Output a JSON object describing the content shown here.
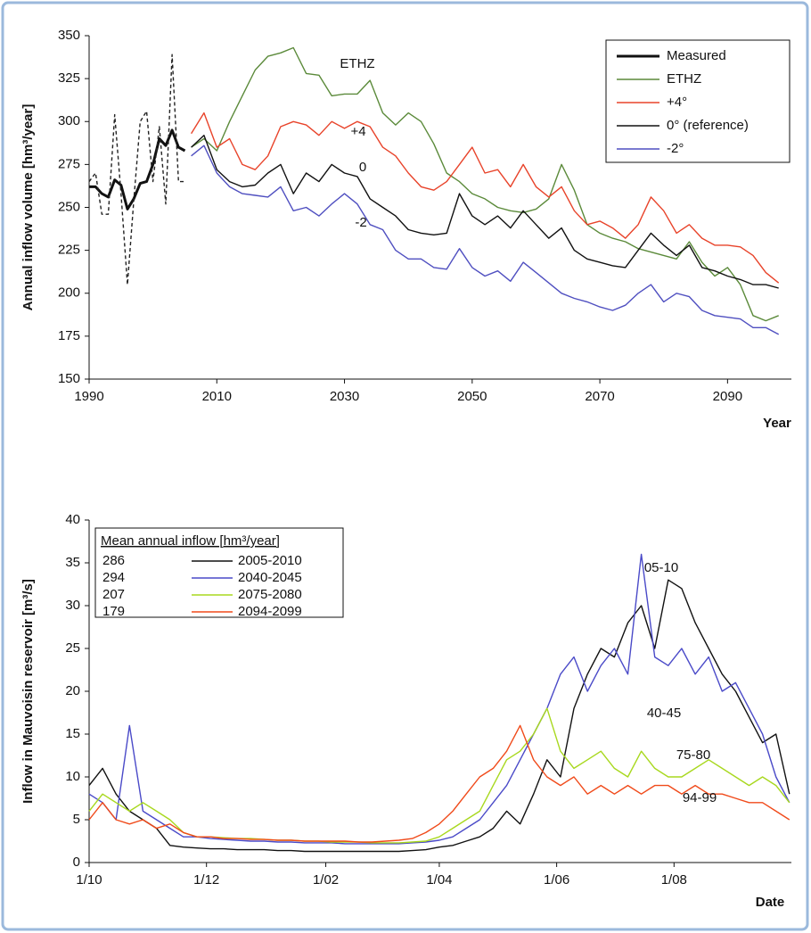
{
  "chart_data": [
    {
      "type": "line",
      "x_label": "Year",
      "y_label": "Annual inflow volume [hm³/year]",
      "xlim": [
        1990,
        2100
      ],
      "xticks": [
        1990,
        2010,
        2030,
        2050,
        2070,
        2090
      ],
      "ylim": [
        150,
        350
      ],
      "yticks": [
        150,
        175,
        200,
        225,
        250,
        275,
        300,
        325,
        350
      ],
      "legend": "top-right",
      "x": [
        2006,
        2008,
        2010,
        2012,
        2014,
        2016,
        2018,
        2020,
        2022,
        2024,
        2026,
        2028,
        2030,
        2032,
        2034,
        2036,
        2038,
        2040,
        2042,
        2044,
        2046,
        2048,
        2050,
        2052,
        2054,
        2056,
        2058,
        2060,
        2062,
        2064,
        2066,
        2068,
        2070,
        2072,
        2074,
        2076,
        2078,
        2080,
        2082,
        2084,
        2086,
        2088,
        2090,
        2092,
        2094,
        2096,
        2098
      ],
      "series": [
        {
          "name": "Measured",
          "color": "#111111",
          "line_width": 3,
          "x": [
            1990,
            1991,
            1992,
            1993,
            1994,
            1995,
            1996,
            1997,
            1998,
            1999,
            2000,
            2001,
            2002,
            2003,
            2004,
            2005
          ],
          "values": [
            262,
            262,
            258,
            256,
            266,
            263,
            249,
            255,
            264,
            265,
            275,
            290,
            286,
            295,
            285,
            283
          ]
        },
        {
          "color": "#222222",
          "dashed": true,
          "x": [
            1990,
            1991,
            1992,
            1993,
            1994,
            1995,
            1996,
            1997,
            1998,
            1999,
            2000,
            2001,
            2002,
            2003,
            2004,
            2005
          ],
          "values": [
            265,
            270,
            246,
            246,
            304,
            258,
            205,
            254,
            300,
            306,
            265,
            297,
            252,
            339,
            265,
            265
          ]
        },
        {
          "name": "ETHZ",
          "color": "#5b8a3a",
          "values": [
            285,
            290,
            283,
            300,
            315,
            330,
            338,
            340,
            343,
            328,
            327,
            315,
            316,
            316,
            324,
            305,
            298,
            305,
            300,
            287,
            270,
            265,
            258,
            255,
            250,
            248,
            247,
            249,
            255,
            275,
            260,
            240,
            235,
            232,
            230,
            226,
            224,
            222,
            220,
            230,
            218,
            210,
            215,
            205,
            187,
            184,
            187
          ]
        },
        {
          "name": "+4°",
          "color": "#e8432a",
          "values": [
            293,
            305,
            285,
            290,
            275,
            272,
            280,
            297,
            300,
            298,
            292,
            300,
            296,
            300,
            297,
            285,
            280,
            270,
            262,
            260,
            265,
            275,
            285,
            270,
            272,
            262,
            275,
            262,
            256,
            262,
            248,
            240,
            242,
            238,
            232,
            240,
            256,
            248,
            235,
            240,
            232,
            228,
            228,
            227,
            222,
            212,
            206
          ]
        },
        {
          "name": "0° (reference)",
          "color": "#111111",
          "values": [
            285,
            292,
            272,
            265,
            262,
            263,
            270,
            275,
            258,
            270,
            265,
            275,
            270,
            268,
            255,
            250,
            245,
            237,
            235,
            234,
            235,
            258,
            245,
            240,
            245,
            238,
            248,
            240,
            232,
            238,
            225,
            220,
            218,
            216,
            215,
            225,
            235,
            228,
            222,
            228,
            215,
            213,
            210,
            208,
            205,
            205,
            203
          ]
        },
        {
          "name": "-2°",
          "color": "#4f4fc0",
          "values": [
            280,
            286,
            270,
            262,
            258,
            257,
            256,
            262,
            248,
            250,
            245,
            252,
            258,
            252,
            240,
            237,
            225,
            220,
            220,
            215,
            214,
            226,
            215,
            210,
            213,
            207,
            218,
            212,
            206,
            200,
            197,
            195,
            192,
            190,
            193,
            200,
            205,
            195,
            200,
            198,
            190,
            187,
            186,
            185,
            180,
            180,
            176
          ]
        }
      ],
      "annotations": [
        "ETHZ",
        "+4",
        "0",
        "-2"
      ]
    },
    {
      "type": "line",
      "x_label": "Date",
      "y_label": "Inflow in Mauvoisin reservoir [m³/s]",
      "xlim": [
        0,
        365
      ],
      "xticks": [
        {
          "value": 0,
          "label": "1/10"
        },
        {
          "value": 61,
          "label": "1/12"
        },
        {
          "value": 123,
          "label": "1/02"
        },
        {
          "value": 182,
          "label": "1/04"
        },
        {
          "value": 243,
          "label": "1/06"
        },
        {
          "value": 304,
          "label": "1/08"
        }
      ],
      "ylim": [
        0,
        40
      ],
      "yticks": [
        0,
        5,
        10,
        15,
        20,
        25,
        30,
        35,
        40
      ],
      "legend": "top-left",
      "legend_title": "Mean annual inflow [hm³/year]",
      "mean_annual_inflow": [
        286,
        294,
        207,
        179
      ],
      "x": [
        0,
        7,
        14,
        21,
        28,
        35,
        42,
        49,
        56,
        63,
        70,
        77,
        84,
        91,
        98,
        105,
        112,
        119,
        126,
        133,
        140,
        147,
        154,
        161,
        168,
        175,
        182,
        189,
        196,
        203,
        210,
        217,
        224,
        231,
        238,
        245,
        252,
        259,
        266,
        273,
        280,
        287,
        294,
        301,
        308,
        315,
        322,
        329,
        336,
        343,
        350,
        357,
        364
      ],
      "series": [
        {
          "name": "2005-2010",
          "color": "#111111",
          "values": [
            9,
            11,
            8,
            6,
            5,
            4,
            2,
            1.8,
            1.7,
            1.6,
            1.6,
            1.5,
            1.5,
            1.5,
            1.4,
            1.4,
            1.3,
            1.3,
            1.3,
            1.3,
            1.3,
            1.3,
            1.3,
            1.3,
            1.4,
            1.5,
            1.8,
            2,
            2.5,
            3,
            4,
            6,
            4.5,
            8,
            12,
            10,
            18,
            22,
            25,
            24,
            28,
            30,
            25,
            33,
            32,
            28,
            25,
            22,
            20,
            17,
            14,
            15,
            8
          ]
        },
        {
          "name": "2040-2045",
          "color": "#4a4ac8",
          "values": [
            8,
            7,
            5,
            16,
            6,
            5,
            4,
            3,
            3,
            2.8,
            2.7,
            2.6,
            2.5,
            2.5,
            2.4,
            2.4,
            2.3,
            2.3,
            2.3,
            2.2,
            2.2,
            2.2,
            2.2,
            2.2,
            2.3,
            2.4,
            2.6,
            3,
            4,
            5,
            7,
            9,
            12,
            15,
            18,
            22,
            24,
            20,
            23,
            25,
            22,
            36,
            24,
            23,
            25,
            22,
            24,
            20,
            21,
            18,
            15,
            10,
            7
          ]
        },
        {
          "name": "2075-2080",
          "color": "#a8d81e",
          "values": [
            6,
            8,
            7,
            6,
            7,
            6,
            5,
            3.5,
            3,
            3,
            2.9,
            2.8,
            2.8,
            2.7,
            2.6,
            2.6,
            2.5,
            2.5,
            2.4,
            2.4,
            2.4,
            2.3,
            2.3,
            2.3,
            2.4,
            2.5,
            3,
            4,
            5,
            6,
            9,
            12,
            13,
            15,
            18,
            13,
            11,
            12,
            13,
            11,
            10,
            13,
            11,
            10,
            10,
            11,
            12,
            11,
            10,
            9,
            10,
            9,
            7
          ]
        },
        {
          "name": "2094-2099",
          "color": "#f04a1a",
          "values": [
            5,
            7,
            5,
            4.5,
            5,
            4,
            4.5,
            3.5,
            3,
            3,
            2.8,
            2.8,
            2.7,
            2.7,
            2.6,
            2.6,
            2.5,
            2.5,
            2.5,
            2.5,
            2.4,
            2.4,
            2.5,
            2.6,
            2.8,
            3.5,
            4.5,
            6,
            8,
            10,
            11,
            13,
            16,
            12,
            10,
            9,
            10,
            8,
            9,
            8,
            9,
            8,
            9,
            9,
            8,
            9,
            8,
            8,
            7.5,
            7,
            7,
            6,
            5
          ]
        }
      ],
      "annotations": [
        "05-10",
        "40-45",
        "75-80",
        "94-99"
      ]
    }
  ]
}
